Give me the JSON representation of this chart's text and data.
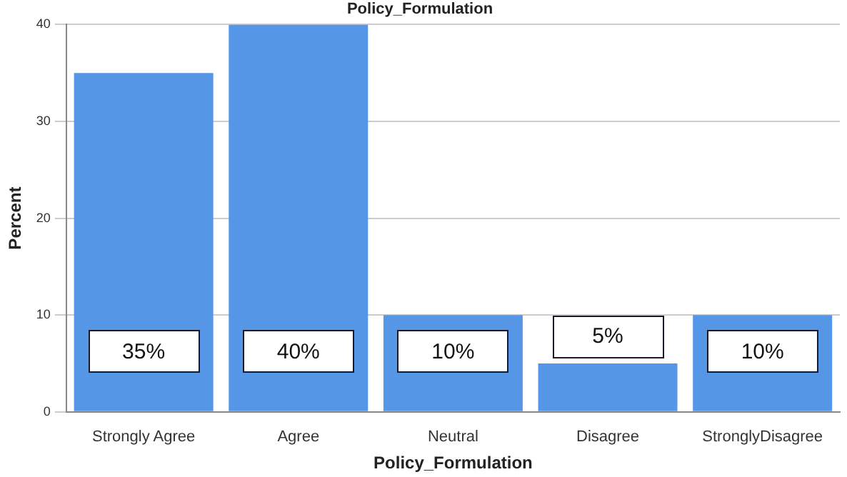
{
  "chart_data": {
    "type": "bar",
    "title": "Policy_Formulation",
    "xlabel": "Policy_Formulation",
    "ylabel": "Percent",
    "categories": [
      "Strongly Agree",
      "Agree",
      "Neutral",
      "Disagree",
      "StronglyDisagree"
    ],
    "values": [
      35,
      40,
      10,
      5,
      10
    ],
    "color": "#5596e6",
    "value_labels": [
      "35%",
      "40%",
      "10%",
      "5%",
      "10%"
    ],
    "ylim": [
      0,
      40
    ],
    "yticks": [
      0,
      10,
      20,
      30,
      40
    ],
    "grid": "y"
  }
}
